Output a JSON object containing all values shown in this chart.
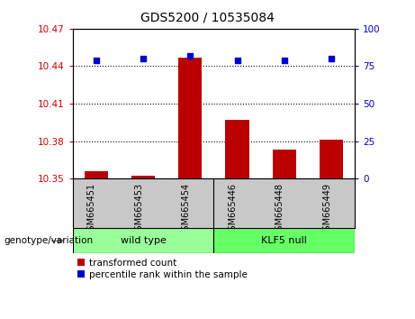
{
  "title": "GDS5200 / 10535084",
  "samples": [
    "GSM665451",
    "GSM665453",
    "GSM665454",
    "GSM665446",
    "GSM665448",
    "GSM665449"
  ],
  "transformed_counts": [
    10.356,
    10.352,
    10.447,
    10.397,
    10.373,
    10.381
  ],
  "percentile_ranks": [
    79,
    80,
    82,
    79,
    79,
    80
  ],
  "ylim_left": [
    10.35,
    10.47
  ],
  "ylim_right": [
    0,
    100
  ],
  "yticks_left": [
    10.35,
    10.38,
    10.41,
    10.44,
    10.47
  ],
  "yticks_right": [
    0,
    25,
    50,
    75,
    100
  ],
  "bar_color": "#BB0000",
  "dot_color": "#0000CC",
  "wildtype_color": "#99FF99",
  "klf5null_color": "#66FF66",
  "label_left_color": "#CC0000",
  "label_right_color": "#0000CC",
  "grid_color": "#000000",
  "bar_width": 0.5,
  "legend_red_label": "transformed count",
  "legend_blue_label": "percentile rank within the sample",
  "genotype_label": "genotype/variation"
}
